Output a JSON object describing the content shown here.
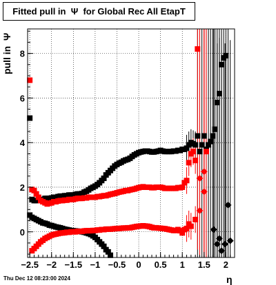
{
  "title": "Fitted pull in  Ψ  for Global Rec All EtapT",
  "timestamp": "Thu Dec 12 08:23:00 2024",
  "chart_data": {
    "type": "scatter",
    "title": "Fitted pull in  Ψ  for Global Rec All EtapT",
    "xlabel": "η",
    "ylabel": "pull in  Ψ",
    "xlim": [
      -2.55,
      2.2
    ],
    "ylim": [
      -1.15,
      9.1
    ],
    "grid": true,
    "legend": "none",
    "x_ticks": [
      "-2.5",
      "-2",
      "-1.5",
      "-1",
      "-0.5",
      "0",
      "0.5",
      "1",
      "1.5",
      "2"
    ],
    "y_ticks": [
      "0",
      "2",
      "4",
      "6",
      "8"
    ],
    "colors": {
      "black": "#000000",
      "red": "#ff0000"
    },
    "series": [
      {
        "color": "#000000",
        "points": [
          [
            -2.5,
            5.1
          ],
          [
            -2.45,
            1.45
          ],
          [
            -2.4,
            1.4
          ],
          [
            -2.35,
            1.4
          ],
          [
            -2.3,
            1.45
          ],
          [
            -2.25,
            1.45
          ],
          [
            -2.2,
            1.45
          ],
          [
            -2.15,
            1.5
          ],
          [
            -2.1,
            1.5
          ],
          [
            -2.05,
            1.5
          ],
          [
            -2.0,
            1.52
          ],
          [
            -1.95,
            1.55
          ],
          [
            -1.9,
            1.55
          ],
          [
            -1.85,
            1.58
          ],
          [
            -1.8,
            1.6
          ],
          [
            -1.75,
            1.6
          ],
          [
            -1.7,
            1.62
          ],
          [
            -1.65,
            1.62
          ],
          [
            -1.6,
            1.65
          ],
          [
            -1.55,
            1.65
          ],
          [
            -1.5,
            1.65
          ],
          [
            -1.45,
            1.68
          ],
          [
            -1.4,
            1.7
          ],
          [
            -1.35,
            1.7
          ],
          [
            -1.3,
            1.72
          ],
          [
            -1.25,
            1.78
          ],
          [
            -1.2,
            1.82
          ],
          [
            -1.15,
            1.88
          ],
          [
            -1.1,
            1.95
          ],
          [
            -1.05,
            2.0
          ],
          [
            -1.0,
            2.05
          ],
          [
            -0.95,
            2.12
          ],
          [
            -0.9,
            2.2
          ],
          [
            -0.85,
            2.3
          ],
          [
            -0.8,
            2.4
          ],
          [
            -0.75,
            2.55
          ],
          [
            -0.7,
            2.65
          ],
          [
            -0.65,
            2.75
          ],
          [
            -0.6,
            2.85
          ],
          [
            -0.55,
            2.95
          ],
          [
            -0.5,
            3.02
          ],
          [
            -0.45,
            3.08
          ],
          [
            -0.4,
            3.12
          ],
          [
            -0.35,
            3.18
          ],
          [
            -0.3,
            3.22
          ],
          [
            -0.25,
            3.25
          ],
          [
            -0.2,
            3.3
          ],
          [
            -0.15,
            3.38
          ],
          [
            -0.1,
            3.45
          ],
          [
            -0.05,
            3.5
          ],
          [
            0.0,
            3.55
          ],
          [
            0.05,
            3.58
          ],
          [
            0.1,
            3.6
          ],
          [
            0.15,
            3.62
          ],
          [
            0.2,
            3.62
          ],
          [
            0.25,
            3.6
          ],
          [
            0.3,
            3.58
          ],
          [
            0.35,
            3.58
          ],
          [
            0.4,
            3.6
          ],
          [
            0.45,
            3.62
          ],
          [
            0.5,
            3.65
          ],
          [
            0.55,
            3.62
          ],
          [
            0.6,
            3.6
          ],
          [
            0.65,
            3.6
          ],
          [
            0.7,
            3.6
          ],
          [
            0.75,
            3.6
          ],
          [
            0.8,
            3.62
          ],
          [
            0.85,
            3.62
          ],
          [
            0.9,
            3.65
          ],
          [
            0.95,
            3.65
          ],
          [
            1.0,
            3.7
          ],
          [
            1.05,
            3.7
          ],
          [
            1.1,
            3.75
          ],
          [
            1.15,
            3.9
          ],
          [
            1.2,
            4.0
          ],
          [
            1.25,
            3.95
          ],
          [
            1.3,
            3.9
          ],
          [
            1.35,
            4.3
          ],
          [
            1.4,
            3.6
          ],
          [
            1.45,
            3.9
          ],
          [
            1.5,
            4.3
          ],
          [
            1.55,
            3.7
          ],
          [
            1.6,
            3.9
          ],
          [
            1.65,
            4.05
          ],
          [
            1.7,
            4.3
          ],
          [
            1.75,
            4.6
          ],
          [
            1.8,
            5.8
          ],
          [
            1.85,
            6.2
          ],
          [
            1.9,
            7.5
          ],
          [
            1.95,
            7.8
          ],
          [
            2.0,
            7.9
          ],
          [
            2.05,
            1.2
          ],
          [
            1.72,
            0.1
          ],
          [
            1.8,
            -0.55
          ],
          [
            1.85,
            -0.3
          ],
          [
            1.9,
            -0.85
          ],
          [
            1.98,
            -0.55
          ],
          [
            2.1,
            -0.4
          ]
        ]
      },
      {
        "color": "#000000",
        "points": [
          [
            -2.5,
            0.75
          ],
          [
            -2.45,
            0.65
          ],
          [
            -2.4,
            0.6
          ],
          [
            -2.35,
            0.55
          ],
          [
            -2.3,
            0.5
          ],
          [
            -2.25,
            0.45
          ],
          [
            -2.2,
            0.4
          ],
          [
            -2.15,
            0.38
          ],
          [
            -2.1,
            0.35
          ],
          [
            -2.05,
            0.3
          ],
          [
            -2.0,
            0.28
          ],
          [
            -1.95,
            0.25
          ],
          [
            -1.9,
            0.22
          ],
          [
            -1.85,
            0.2
          ],
          [
            -1.8,
            0.18
          ],
          [
            -1.75,
            0.15
          ],
          [
            -1.7,
            0.12
          ],
          [
            -1.65,
            0.1
          ],
          [
            -1.6,
            0.08
          ],
          [
            -1.55,
            0.06
          ],
          [
            -1.5,
            0.05
          ],
          [
            -1.45,
            0.04
          ],
          [
            -1.4,
            0.03
          ],
          [
            -1.35,
            0.02
          ],
          [
            -1.3,
            0.0
          ],
          [
            -1.25,
            -0.02
          ],
          [
            -1.2,
            -0.05
          ],
          [
            -1.15,
            -0.08
          ],
          [
            -1.1,
            -0.12
          ],
          [
            -1.05,
            -0.18
          ],
          [
            -1.0,
            -0.25
          ],
          [
            -0.95,
            -0.35
          ],
          [
            -0.9,
            -0.45
          ],
          [
            -0.85,
            -0.55
          ],
          [
            -0.8,
            -0.65
          ],
          [
            -0.75,
            -0.8
          ],
          [
            -0.7,
            -0.9
          ],
          [
            -0.65,
            -1.05
          ]
        ]
      },
      {
        "color": "#ff0000",
        "points": [
          [
            -2.5,
            6.8
          ],
          [
            -2.45,
            1.9
          ],
          [
            -2.4,
            1.85
          ],
          [
            -2.35,
            1.7
          ],
          [
            -2.3,
            1.55
          ],
          [
            -2.25,
            1.4
          ],
          [
            -2.2,
            1.35
          ],
          [
            -2.15,
            1.3
          ],
          [
            -2.1,
            1.25
          ],
          [
            -2.05,
            1.28
          ],
          [
            -2.0,
            1.3
          ],
          [
            -1.95,
            1.35
          ],
          [
            -1.9,
            1.35
          ],
          [
            -1.85,
            1.38
          ],
          [
            -1.8,
            1.4
          ],
          [
            -1.75,
            1.4
          ],
          [
            -1.7,
            1.42
          ],
          [
            -1.65,
            1.42
          ],
          [
            -1.6,
            1.45
          ],
          [
            -1.55,
            1.45
          ],
          [
            -1.5,
            1.45
          ],
          [
            -1.45,
            1.48
          ],
          [
            -1.4,
            1.5
          ],
          [
            -1.35,
            1.5
          ],
          [
            -1.3,
            1.5
          ],
          [
            -1.25,
            1.52
          ],
          [
            -1.2,
            1.52
          ],
          [
            -1.15,
            1.55
          ],
          [
            -1.1,
            1.55
          ],
          [
            -1.05,
            1.55
          ],
          [
            -1.0,
            1.55
          ],
          [
            -0.95,
            1.58
          ],
          [
            -0.9,
            1.58
          ],
          [
            -0.85,
            1.6
          ],
          [
            -0.8,
            1.62
          ],
          [
            -0.75,
            1.62
          ],
          [
            -0.7,
            1.65
          ],
          [
            -0.65,
            1.68
          ],
          [
            -0.6,
            1.7
          ],
          [
            -0.55,
            1.72
          ],
          [
            -0.5,
            1.75
          ],
          [
            -0.45,
            1.78
          ],
          [
            -0.4,
            1.8
          ],
          [
            -0.35,
            1.82
          ],
          [
            -0.3,
            1.85
          ],
          [
            -0.25,
            1.85
          ],
          [
            -0.2,
            1.88
          ],
          [
            -0.15,
            1.9
          ],
          [
            -0.1,
            1.92
          ],
          [
            -0.05,
            1.95
          ],
          [
            0.0,
            1.98
          ],
          [
            0.05,
            2.0
          ],
          [
            0.1,
            2.02
          ],
          [
            0.15,
            2.0
          ],
          [
            0.2,
            2.0
          ],
          [
            0.25,
            2.0
          ],
          [
            0.3,
            1.98
          ],
          [
            0.35,
            1.98
          ],
          [
            0.4,
            2.0
          ],
          [
            0.45,
            2.0
          ],
          [
            0.5,
            2.0
          ],
          [
            0.55,
            1.98
          ],
          [
            0.6,
            1.95
          ],
          [
            0.65,
            1.95
          ],
          [
            0.7,
            1.95
          ],
          [
            0.75,
            1.95
          ],
          [
            0.8,
            1.95
          ],
          [
            0.85,
            1.95
          ],
          [
            0.9,
            1.98
          ],
          [
            0.95,
            1.98
          ],
          [
            1.0,
            2.0
          ],
          [
            1.05,
            2.2
          ],
          [
            1.1,
            2.3
          ],
          [
            1.15,
            3.1
          ],
          [
            1.2,
            3.5
          ],
          [
            1.25,
            3.6
          ],
          [
            1.3,
            3.2
          ],
          [
            1.35,
            8.2
          ],
          [
            1.4,
            2.4
          ],
          [
            1.5,
            2.7
          ],
          [
            1.55,
            3.6
          ]
        ]
      },
      {
        "color": "#ff0000",
        "points": [
          [
            -2.45,
            -0.85
          ],
          [
            -2.4,
            -0.75
          ],
          [
            -2.35,
            -0.65
          ],
          [
            -2.3,
            -0.55
          ],
          [
            -2.25,
            -0.45
          ],
          [
            -2.2,
            -0.38
          ],
          [
            -2.15,
            -0.3
          ],
          [
            -2.1,
            -0.25
          ],
          [
            -2.05,
            -0.2
          ],
          [
            -2.0,
            -0.15
          ],
          [
            -1.95,
            -0.12
          ],
          [
            -1.9,
            -0.1
          ],
          [
            -1.85,
            -0.08
          ],
          [
            -1.8,
            -0.06
          ],
          [
            -1.75,
            -0.05
          ],
          [
            -1.7,
            -0.04
          ],
          [
            -1.65,
            -0.02
          ],
          [
            -1.6,
            -0.02
          ],
          [
            -1.55,
            0.0
          ],
          [
            -1.5,
            0.0
          ],
          [
            -1.45,
            0.0
          ],
          [
            -1.4,
            0.02
          ],
          [
            -1.35,
            0.02
          ],
          [
            -1.3,
            0.02
          ],
          [
            -1.25,
            0.04
          ],
          [
            -1.2,
            0.05
          ],
          [
            -1.15,
            0.05
          ],
          [
            -1.1,
            0.05
          ],
          [
            -1.05,
            0.06
          ],
          [
            -1.0,
            0.06
          ],
          [
            -0.95,
            0.08
          ],
          [
            -0.9,
            0.08
          ],
          [
            -0.85,
            0.1
          ],
          [
            -0.8,
            0.1
          ],
          [
            -0.75,
            0.12
          ],
          [
            -0.7,
            0.12
          ],
          [
            -0.65,
            0.12
          ],
          [
            -0.6,
            0.13
          ],
          [
            -0.55,
            0.14
          ],
          [
            -0.5,
            0.15
          ],
          [
            -0.45,
            0.15
          ],
          [
            -0.4,
            0.16
          ],
          [
            -0.35,
            0.17
          ],
          [
            -0.3,
            0.17
          ],
          [
            -0.25,
            0.18
          ],
          [
            -0.2,
            0.18
          ],
          [
            -0.15,
            0.2
          ],
          [
            -0.1,
            0.22
          ],
          [
            -0.05,
            0.24
          ],
          [
            0.0,
            0.25
          ],
          [
            0.05,
            0.26
          ],
          [
            0.1,
            0.27
          ],
          [
            0.15,
            0.26
          ],
          [
            0.2,
            0.25
          ],
          [
            0.25,
            0.23
          ],
          [
            0.3,
            0.2
          ],
          [
            0.35,
            0.18
          ],
          [
            0.4,
            0.18
          ],
          [
            0.45,
            0.17
          ],
          [
            0.5,
            0.16
          ],
          [
            0.55,
            0.15
          ],
          [
            0.6,
            0.14
          ],
          [
            0.65,
            0.12
          ],
          [
            0.7,
            0.1
          ],
          [
            0.75,
            0.08
          ],
          [
            0.8,
            0.06
          ],
          [
            0.85,
            0.06
          ],
          [
            0.9,
            0.1
          ],
          [
            0.95,
            0.05
          ],
          [
            1.0,
            -0.05
          ],
          [
            1.05,
            0.1
          ],
          [
            1.1,
            0.15
          ],
          [
            1.15,
            0.35
          ],
          [
            1.2,
            0.25
          ],
          [
            1.3,
            0.55
          ],
          [
            1.4,
            0.95
          ],
          [
            1.5,
            1.8
          ]
        ]
      }
    ]
  }
}
